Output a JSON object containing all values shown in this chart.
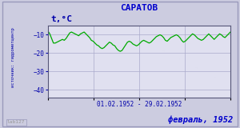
{
  "title": "САРАТОВ",
  "ylabel": "t,°C",
  "xlabel": "01.02.1952 - 29.02.1952",
  "footer_left": "lab127",
  "footer_right": "февраль, 1952",
  "source_label": "источник: гидрометцентр",
  "ylim": [
    -44,
    -5
  ],
  "yticks": [
    -40,
    -30,
    -20,
    -10
  ],
  "num_days": 29,
  "line_color": "#00aa00",
  "bg_color": "#cccce0",
  "plot_bg_color": "#e0e0f0",
  "border_color": "#9999bb",
  "title_color": "#0000cc",
  "footer_right_color": "#0000cc",
  "footer_left_color": "#999999",
  "axis_label_color": "#0000aa",
  "grid_color": "#aaaacc",
  "temperatures": [
    -8.0,
    -9.5,
    -12.0,
    -14.5,
    -14.5,
    -14.0,
    -13.5,
    -13.0,
    -12.5,
    -13.0,
    -12.0,
    -10.5,
    -9.0,
    -8.5,
    -9.0,
    -9.5,
    -10.0,
    -10.5,
    -9.5,
    -9.0,
    -8.5,
    -9.5,
    -10.5,
    -11.5,
    -13.0,
    -13.5,
    -14.5,
    -15.5,
    -16.0,
    -17.0,
    -17.5,
    -17.0,
    -16.0,
    -15.0,
    -14.0,
    -14.5,
    -15.5,
    -16.0,
    -17.5,
    -18.5,
    -19.0,
    -18.5,
    -17.0,
    -15.5,
    -14.0,
    -13.5,
    -14.0,
    -15.0,
    -15.5,
    -16.0,
    -15.5,
    -14.5,
    -13.5,
    -13.0,
    -13.5,
    -14.0,
    -14.5,
    -14.0,
    -13.0,
    -12.0,
    -11.0,
    -10.5,
    -10.0,
    -10.5,
    -11.5,
    -13.0,
    -13.5,
    -12.5,
    -11.5,
    -11.0,
    -10.5,
    -10.0,
    -10.5,
    -11.5,
    -13.0,
    -14.0,
    -13.5,
    -12.5,
    -11.5,
    -10.5,
    -9.5,
    -10.0,
    -11.0,
    -12.0,
    -12.5,
    -13.0,
    -12.5,
    -11.5,
    -10.5,
    -9.5,
    -10.5,
    -11.5,
    -12.5,
    -11.5,
    -10.5,
    -9.5,
    -10.0,
    -11.0,
    -11.5,
    -10.5,
    -9.5,
    -8.5
  ]
}
